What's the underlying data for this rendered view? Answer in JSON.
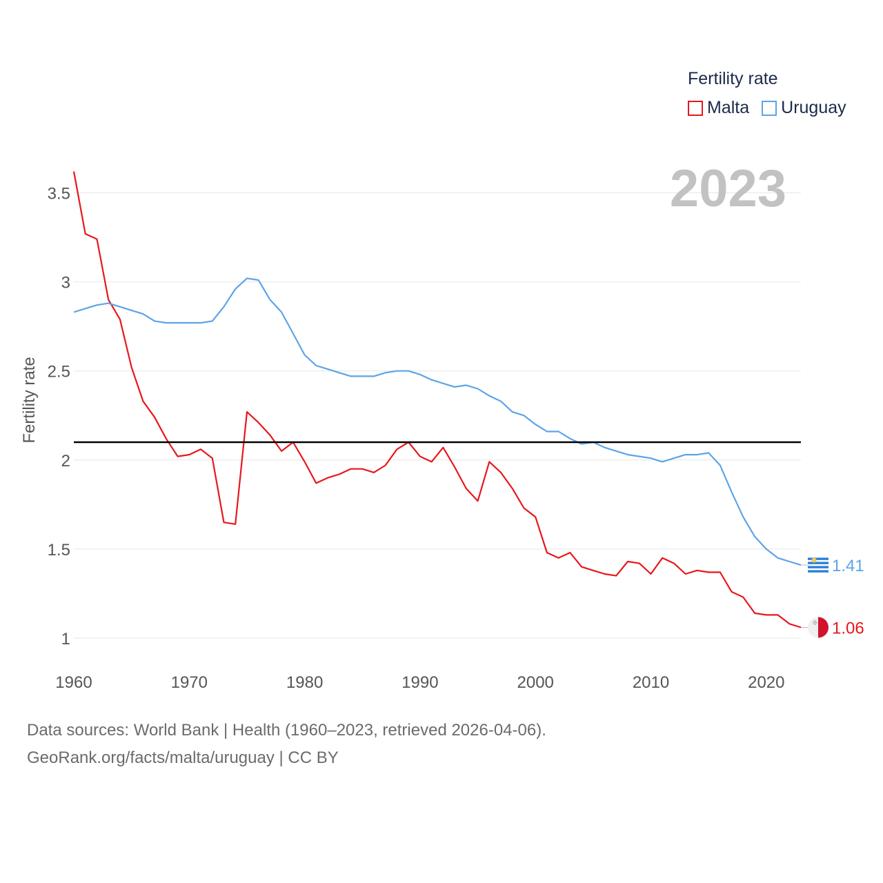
{
  "legend": {
    "title": "Fertility rate",
    "items": [
      {
        "label": "Malta",
        "color": "#e8161b"
      },
      {
        "label": "Uruguay",
        "color": "#5da3e6"
      }
    ]
  },
  "footer": {
    "line1": "Data sources: World Bank | Health (1960–2023, retrieved 2026-04-06).",
    "line2": "GeoRank.org/facts/malta/uruguay | CC BY"
  },
  "chart_data": {
    "type": "line",
    "year_label": "2023",
    "ylabel": "Fertility rate",
    "xlabel": "",
    "xlim": [
      1960,
      2023
    ],
    "ylim": [
      1,
      3.5
    ],
    "x_ticks": [
      1960,
      1970,
      1980,
      1990,
      2000,
      2010,
      2020
    ],
    "y_ticks": [
      1,
      1.5,
      2,
      2.5,
      3,
      3.5
    ],
    "y_tick_labels": [
      "1",
      "1.5",
      "2",
      "2.5",
      "3",
      "3.5"
    ],
    "reference_line": 2.1,
    "grid": true,
    "x": [
      1960,
      1961,
      1962,
      1963,
      1964,
      1965,
      1966,
      1967,
      1968,
      1969,
      1970,
      1971,
      1972,
      1973,
      1974,
      1975,
      1976,
      1977,
      1978,
      1979,
      1980,
      1981,
      1982,
      1983,
      1984,
      1985,
      1986,
      1987,
      1988,
      1989,
      1990,
      1991,
      1992,
      1993,
      1994,
      1995,
      1996,
      1997,
      1998,
      1999,
      2000,
      2001,
      2002,
      2003,
      2004,
      2005,
      2006,
      2007,
      2008,
      2009,
      2010,
      2011,
      2012,
      2013,
      2014,
      2015,
      2016,
      2017,
      2018,
      2019,
      2020,
      2021,
      2022,
      2023
    ],
    "series": [
      {
        "name": "Malta",
        "color": "#e8161b",
        "end_label": "1.06",
        "flag": "malta-flag",
        "values": [
          3.62,
          3.27,
          3.24,
          2.9,
          2.79,
          2.52,
          2.33,
          2.24,
          2.12,
          2.02,
          2.03,
          2.06,
          2.01,
          1.65,
          1.64,
          2.27,
          2.21,
          2.14,
          2.05,
          2.1,
          1.99,
          1.87,
          1.9,
          1.92,
          1.95,
          1.95,
          1.93,
          1.97,
          2.06,
          2.1,
          2.02,
          1.99,
          2.07,
          1.96,
          1.84,
          1.77,
          1.99,
          1.93,
          1.84,
          1.73,
          1.68,
          1.48,
          1.45,
          1.48,
          1.4,
          1.38,
          1.36,
          1.35,
          1.43,
          1.42,
          1.36,
          1.45,
          1.42,
          1.36,
          1.38,
          1.37,
          1.37,
          1.26,
          1.23,
          1.14,
          1.13,
          1.13,
          1.08,
          1.06
        ]
      },
      {
        "name": "Uruguay",
        "color": "#5da3e6",
        "end_label": "1.41",
        "flag": "uruguay-flag",
        "values": [
          2.83,
          2.85,
          2.87,
          2.88,
          2.86,
          2.84,
          2.82,
          2.78,
          2.77,
          2.77,
          2.77,
          2.77,
          2.78,
          2.86,
          2.96,
          3.02,
          3.01,
          2.9,
          2.83,
          2.71,
          2.59,
          2.53,
          2.51,
          2.49,
          2.47,
          2.47,
          2.47,
          2.49,
          2.5,
          2.5,
          2.48,
          2.45,
          2.43,
          2.41,
          2.42,
          2.4,
          2.36,
          2.33,
          2.27,
          2.25,
          2.2,
          2.16,
          2.16,
          2.12,
          2.09,
          2.1,
          2.07,
          2.05,
          2.03,
          2.02,
          2.01,
          1.99,
          2.01,
          2.03,
          2.03,
          2.04,
          1.97,
          1.82,
          1.68,
          1.57,
          1.5,
          1.45,
          1.43,
          1.41
        ]
      }
    ]
  }
}
